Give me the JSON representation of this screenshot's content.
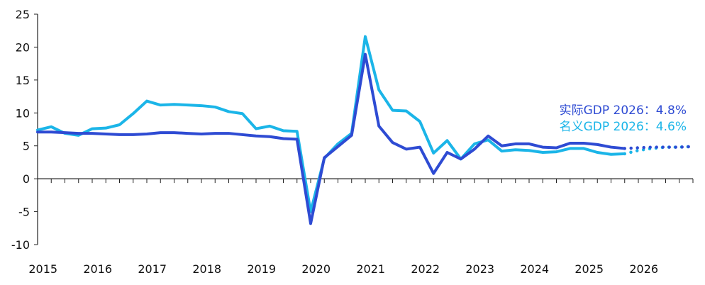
{
  "chart_data": {
    "type": "line",
    "x_tick_labels": [
      "2015",
      "2016",
      "2017",
      "2018",
      "2019",
      "2020",
      "2021",
      "2022",
      "2023",
      "2024",
      "2025",
      "2026"
    ],
    "y_ticks": [
      -10,
      -5,
      0,
      5,
      10,
      15,
      20,
      25
    ],
    "ylim": [
      -10,
      25
    ],
    "xlim": [
      2015.0,
      2027.0
    ],
    "x_quarter_ticks": true,
    "grid": false,
    "series": [
      {
        "key": "real",
        "color": "#2E4BD3",
        "x": [
          2015.0,
          2015.25,
          2015.5,
          2015.75,
          2016.0,
          2016.25,
          2016.5,
          2016.75,
          2017.0,
          2017.25,
          2017.5,
          2017.75,
          2018.0,
          2018.25,
          2018.5,
          2018.75,
          2019.0,
          2019.25,
          2019.5,
          2019.75,
          2020.0,
          2020.25,
          2020.5,
          2020.75,
          2021.0,
          2021.25,
          2021.5,
          2021.75,
          2022.0,
          2022.25,
          2022.5,
          2022.75,
          2023.0,
          2023.25,
          2023.5,
          2023.75,
          2024.0,
          2024.25,
          2024.5,
          2024.75,
          2025.0,
          2025.25,
          2025.5,
          2025.75
        ],
        "y": [
          7.1,
          7.1,
          7.0,
          6.9,
          6.9,
          6.8,
          6.7,
          6.7,
          6.8,
          7.0,
          7.0,
          6.9,
          6.8,
          6.9,
          6.9,
          6.7,
          6.5,
          6.4,
          6.1,
          6.0,
          -6.8,
          3.2,
          4.9,
          6.6,
          18.9,
          8.0,
          5.5,
          4.5,
          4.8,
          0.8,
          4.0,
          3.0,
          4.5,
          6.5,
          5.0,
          5.3,
          5.3,
          4.8,
          4.7,
          5.4,
          5.4,
          5.2,
          4.8,
          4.6
        ],
        "forecast_x": [
          2025.75,
          2026.0,
          2026.25,
          2026.5,
          2026.75,
          2027.0
        ],
        "forecast_y": [
          4.6,
          4.7,
          4.8,
          4.8,
          4.8,
          4.9
        ]
      },
      {
        "key": "nominal",
        "color": "#1BB5E8",
        "x": [
          2015.0,
          2015.25,
          2015.5,
          2015.75,
          2016.0,
          2016.25,
          2016.5,
          2016.75,
          2017.0,
          2017.25,
          2017.5,
          2017.75,
          2018.0,
          2018.25,
          2018.5,
          2018.75,
          2019.0,
          2019.25,
          2019.5,
          2019.75,
          2020.0,
          2020.25,
          2020.5,
          2020.75,
          2021.0,
          2021.25,
          2021.5,
          2021.75,
          2022.0,
          2022.25,
          2022.5,
          2022.75,
          2023.0,
          2023.25,
          2023.5,
          2023.75,
          2024.0,
          2024.25,
          2024.5,
          2024.75,
          2025.0,
          2025.25,
          2025.5,
          2025.75
        ],
        "y": [
          7.4,
          7.9,
          6.9,
          6.6,
          7.6,
          7.7,
          8.2,
          9.9,
          11.8,
          11.2,
          11.3,
          11.2,
          11.1,
          10.9,
          10.2,
          9.9,
          7.6,
          8.0,
          7.3,
          7.2,
          -5.0,
          3.1,
          5.3,
          6.9,
          21.6,
          13.5,
          10.4,
          10.3,
          8.7,
          3.9,
          5.8,
          3.0,
          5.3,
          5.9,
          4.2,
          4.4,
          4.3,
          4.0,
          4.1,
          4.6,
          4.6,
          4.0,
          3.7,
          3.8
        ],
        "forecast_x": [
          2025.75,
          2026.0,
          2026.25,
          2026.5,
          2026.75,
          2027.0
        ],
        "forecast_y": [
          3.8,
          4.3,
          4.6,
          4.8,
          4.8,
          4.9
        ]
      }
    ],
    "annotations": [
      {
        "key": "real",
        "text": "实际GDP 2026：4.8%",
        "color": "#2E4BD3"
      },
      {
        "key": "nominal",
        "text": "名义GDP 2026：4.6%",
        "color": "#1BB5E8"
      }
    ]
  }
}
